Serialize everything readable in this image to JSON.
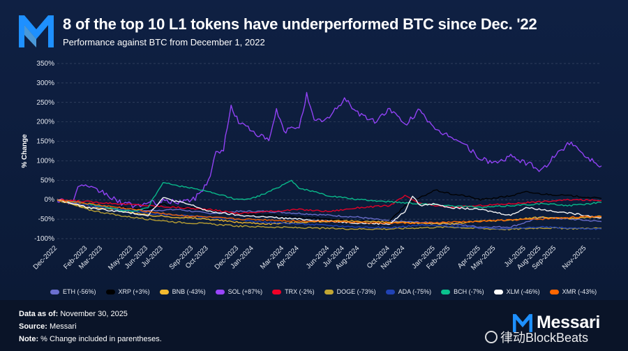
{
  "header": {
    "title": "8 of the top 10 L1 tokens have underperformed BTC since Dec. '22",
    "subtitle": "Performance against BTC from December 1, 2022"
  },
  "colors": {
    "background": "#0f2043",
    "logo": "#1e90ff",
    "grid": "#3b4a66"
  },
  "chart_data": {
    "type": "line",
    "title": "8 of the top 10 L1 tokens have underperformed BTC since Dec. '22",
    "subtitle": "Performance against BTC from December 1, 2022",
    "ylabel": "% Change",
    "xlabel": "",
    "ylim": [
      -100,
      350
    ],
    "grid": true,
    "legend_position": "bottom",
    "y_ticks": [
      "350%",
      "300%",
      "250%",
      "200%",
      "150%",
      "100%",
      "50%",
      "0%",
      "-50%",
      "-100%"
    ],
    "x_ticks": [
      "Dec-2022",
      "Feb-2023",
      "Mar-2023",
      "May-2023",
      "Jun-2023",
      "Jul-2023",
      "Sep-2023",
      "Oct-2023",
      "Dec-2023",
      "Jan-2024",
      "Mar-2024",
      "Apr-2024",
      "Jun-2024",
      "Jul-2024",
      "Aug-2024",
      "Oct-2024",
      "Nov-2024",
      "Jan-2025",
      "Feb-2025",
      "Apr-2025",
      "May-2025",
      "Jul-2025",
      "Aug-2025",
      "Sep-2025",
      "Nov-2025"
    ],
    "x_month_index": [
      0,
      2,
      3,
      5,
      6,
      7,
      9,
      10,
      12,
      13,
      15,
      16,
      18,
      19,
      20,
      22,
      23,
      25,
      26,
      28,
      29,
      31,
      32,
      33,
      35
    ],
    "x_range_months": [
      0,
      36
    ],
    "series": [
      {
        "name": "ETH",
        "label": "ETH (-56%)",
        "color": "#6b6fcf",
        "points": [
          [
            0,
            0
          ],
          [
            2,
            -15
          ],
          [
            4,
            -20
          ],
          [
            6,
            -28
          ],
          [
            8,
            -25
          ],
          [
            10,
            -35
          ],
          [
            12,
            -30
          ],
          [
            14,
            -30
          ],
          [
            16,
            -35
          ],
          [
            18,
            -40
          ],
          [
            20,
            -45
          ],
          [
            22,
            -55
          ],
          [
            24,
            -58
          ],
          [
            26,
            -62
          ],
          [
            28,
            -70
          ],
          [
            30,
            -70
          ],
          [
            32,
            -45
          ],
          [
            34,
            -50
          ],
          [
            36,
            -56
          ]
        ]
      },
      {
        "name": "XRP",
        "label": "XRP (+3%)",
        "color": "#000000",
        "points": [
          [
            0,
            0
          ],
          [
            2,
            -15
          ],
          [
            4,
            -20
          ],
          [
            6,
            -25
          ],
          [
            7,
            -10
          ],
          [
            8,
            -20
          ],
          [
            10,
            -25
          ],
          [
            12,
            -35
          ],
          [
            14,
            -40
          ],
          [
            16,
            -45
          ],
          [
            18,
            -50
          ],
          [
            20,
            -55
          ],
          [
            22,
            -55
          ],
          [
            23,
            -15
          ],
          [
            24,
            5
          ],
          [
            25,
            25
          ],
          [
            26,
            15
          ],
          [
            27,
            10
          ],
          [
            28,
            0
          ],
          [
            30,
            10
          ],
          [
            31,
            20
          ],
          [
            32,
            15
          ],
          [
            34,
            10
          ],
          [
            36,
            3
          ]
        ]
      },
      {
        "name": "BNB",
        "label": "BNB (-43%)",
        "color": "#f3ba2f",
        "points": [
          [
            0,
            0
          ],
          [
            2,
            -20
          ],
          [
            4,
            -25
          ],
          [
            6,
            -40
          ],
          [
            8,
            -45
          ],
          [
            10,
            -50
          ],
          [
            12,
            -58
          ],
          [
            14,
            -62
          ],
          [
            16,
            -58
          ],
          [
            18,
            -55
          ],
          [
            20,
            -55
          ],
          [
            22,
            -58
          ],
          [
            24,
            -60
          ],
          [
            26,
            -62
          ],
          [
            28,
            -55
          ],
          [
            30,
            -52
          ],
          [
            32,
            -45
          ],
          [
            34,
            -48
          ],
          [
            36,
            -43
          ]
        ]
      },
      {
        "name": "SOL",
        "label": "SOL (+87%)",
        "color": "#9945ff",
        "points": [
          [
            0,
            0
          ],
          [
            1,
            -5
          ],
          [
            1.5,
            40
          ],
          [
            2,
            30
          ],
          [
            3,
            20
          ],
          [
            4,
            -5
          ],
          [
            5,
            -15
          ],
          [
            6,
            -10
          ],
          [
            7,
            -5
          ],
          [
            8,
            -5
          ],
          [
            9,
            0
          ],
          [
            9.5,
            20
          ],
          [
            10,
            50
          ],
          [
            10.5,
            120
          ],
          [
            11,
            130
          ],
          [
            11.5,
            240
          ],
          [
            12,
            200
          ],
          [
            13,
            175
          ],
          [
            14,
            150
          ],
          [
            14.5,
            230
          ],
          [
            15,
            175
          ],
          [
            16,
            190
          ],
          [
            16.5,
            270
          ],
          [
            17,
            200
          ],
          [
            18,
            210
          ],
          [
            19,
            260
          ],
          [
            20,
            220
          ],
          [
            21,
            200
          ],
          [
            22,
            235
          ],
          [
            23,
            190
          ],
          [
            24,
            235
          ],
          [
            25,
            175
          ],
          [
            26,
            165
          ],
          [
            27,
            140
          ],
          [
            28,
            105
          ],
          [
            29,
            95
          ],
          [
            30,
            110
          ],
          [
            31,
            95
          ],
          [
            32,
            75
          ],
          [
            33,
            115
          ],
          [
            34,
            150
          ],
          [
            35,
            110
          ],
          [
            36,
            87
          ]
        ]
      },
      {
        "name": "TRX",
        "label": "TRX (-2%)",
        "color": "#ef0027",
        "points": [
          [
            0,
            0
          ],
          [
            2,
            -5
          ],
          [
            4,
            -10
          ],
          [
            6,
            -15
          ],
          [
            8,
            -20
          ],
          [
            10,
            -25
          ],
          [
            12,
            -35
          ],
          [
            14,
            -30
          ],
          [
            16,
            -25
          ],
          [
            18,
            -30
          ],
          [
            20,
            -20
          ],
          [
            22,
            -15
          ],
          [
            23,
            10
          ],
          [
            24,
            -10
          ],
          [
            26,
            -20
          ],
          [
            28,
            -15
          ],
          [
            30,
            -10
          ],
          [
            32,
            -5
          ],
          [
            34,
            0
          ],
          [
            36,
            -2
          ]
        ]
      },
      {
        "name": "DOGE",
        "label": "DOGE (-73%)",
        "color": "#c2a633",
        "points": [
          [
            0,
            0
          ],
          [
            2,
            -25
          ],
          [
            4,
            -40
          ],
          [
            6,
            -50
          ],
          [
            8,
            -58
          ],
          [
            10,
            -62
          ],
          [
            12,
            -68
          ],
          [
            14,
            -70
          ],
          [
            16,
            -72
          ],
          [
            18,
            -74
          ],
          [
            20,
            -75
          ],
          [
            22,
            -75
          ],
          [
            24,
            -72
          ],
          [
            26,
            -70
          ],
          [
            28,
            -74
          ],
          [
            30,
            -76
          ],
          [
            32,
            -72
          ],
          [
            34,
            -74
          ],
          [
            36,
            -73
          ]
        ]
      },
      {
        "name": "ADA",
        "label": "ADA (-75%)",
        "color": "#2042b5",
        "points": [
          [
            0,
            0
          ],
          [
            2,
            -15
          ],
          [
            4,
            -25
          ],
          [
            6,
            -35
          ],
          [
            8,
            -40
          ],
          [
            10,
            -45
          ],
          [
            12,
            -52
          ],
          [
            14,
            -58
          ],
          [
            16,
            -62
          ],
          [
            18,
            -66
          ],
          [
            20,
            -70
          ],
          [
            22,
            -72
          ],
          [
            24,
            -65
          ],
          [
            26,
            -68
          ],
          [
            28,
            -72
          ],
          [
            30,
            -74
          ],
          [
            32,
            -70
          ],
          [
            34,
            -73
          ],
          [
            36,
            -75
          ]
        ]
      },
      {
        "name": "BCH",
        "label": "BCH (-7%)",
        "color": "#0ac18e",
        "points": [
          [
            0,
            0
          ],
          [
            2,
            -10
          ],
          [
            4,
            -25
          ],
          [
            5,
            -30
          ],
          [
            6,
            -20
          ],
          [
            7,
            45
          ],
          [
            8,
            35
          ],
          [
            9,
            30
          ],
          [
            10,
            20
          ],
          [
            11,
            10
          ],
          [
            12,
            0
          ],
          [
            13,
            5
          ],
          [
            14,
            20
          ],
          [
            15,
            40
          ],
          [
            15.5,
            50
          ],
          [
            16,
            30
          ],
          [
            17,
            20
          ],
          [
            18,
            10
          ],
          [
            20,
            0
          ],
          [
            22,
            -5
          ],
          [
            24,
            -10
          ],
          [
            26,
            -15
          ],
          [
            28,
            -20
          ],
          [
            30,
            -15
          ],
          [
            32,
            -10
          ],
          [
            34,
            -15
          ],
          [
            36,
            -7
          ]
        ]
      },
      {
        "name": "XLM",
        "label": "XLM (-46%)",
        "color": "#ffffff",
        "points": [
          [
            0,
            0
          ],
          [
            2,
            -20
          ],
          [
            4,
            -30
          ],
          [
            6,
            -40
          ],
          [
            7,
            5
          ],
          [
            8,
            -5
          ],
          [
            9,
            -15
          ],
          [
            10,
            -30
          ],
          [
            12,
            -40
          ],
          [
            14,
            -45
          ],
          [
            16,
            -50
          ],
          [
            18,
            -55
          ],
          [
            20,
            -60
          ],
          [
            22,
            -62
          ],
          [
            23,
            -30
          ],
          [
            23.5,
            10
          ],
          [
            24,
            -15
          ],
          [
            25,
            -10
          ],
          [
            26,
            -20
          ],
          [
            28,
            -25
          ],
          [
            30,
            -40
          ],
          [
            31,
            -20
          ],
          [
            32,
            -25
          ],
          [
            34,
            -35
          ],
          [
            36,
            -46
          ]
        ]
      },
      {
        "name": "XMR",
        "label": "XMR (-43%)",
        "color": "#ff6600",
        "points": [
          [
            0,
            0
          ],
          [
            2,
            -10
          ],
          [
            4,
            -20
          ],
          [
            6,
            -30
          ],
          [
            8,
            -40
          ],
          [
            10,
            -45
          ],
          [
            12,
            -50
          ],
          [
            14,
            -52
          ],
          [
            16,
            -55
          ],
          [
            18,
            -55
          ],
          [
            20,
            -58
          ],
          [
            22,
            -60
          ],
          [
            24,
            -60
          ],
          [
            26,
            -58
          ],
          [
            28,
            -55
          ],
          [
            30,
            -52
          ],
          [
            32,
            -50
          ],
          [
            34,
            -45
          ],
          [
            36,
            -43
          ]
        ]
      }
    ]
  },
  "footer": {
    "data_as_of_label": "Data as of:",
    "data_as_of_value": "November 30, 2025",
    "source_label": "Source:",
    "source_value": "Messari",
    "note_label": "Note:",
    "note_value": "% Change included in parentheses."
  },
  "brand": {
    "name": "Messari",
    "watermark": "律动BlockBeats"
  }
}
